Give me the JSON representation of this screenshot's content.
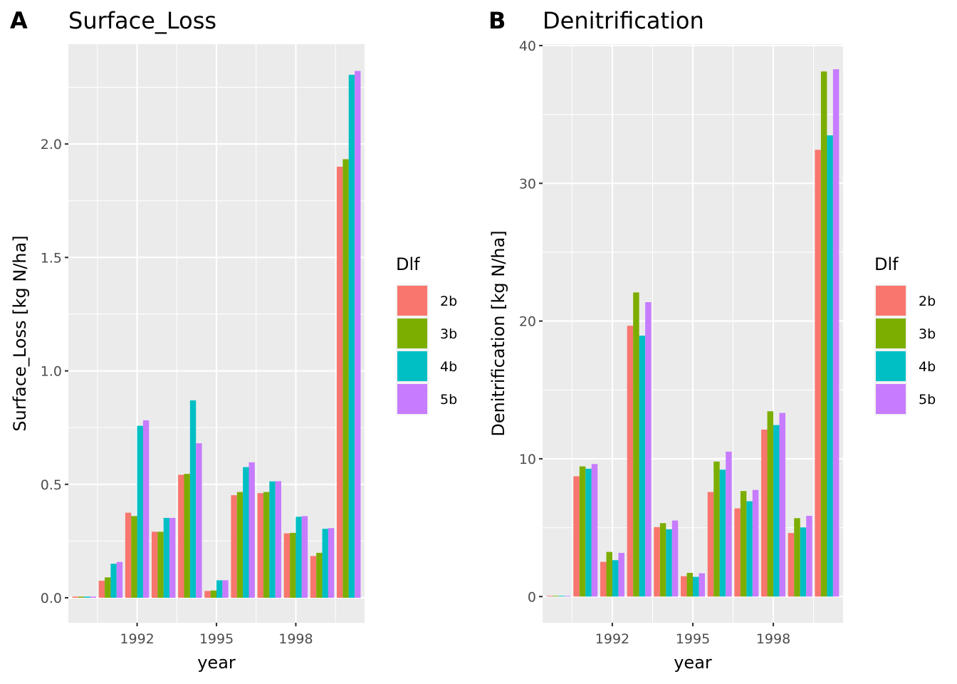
{
  "chart_data": [
    {
      "type": "bar",
      "tag": "A",
      "title": "Surface_Loss",
      "xlabel": "year",
      "ylabel": "Surface_Loss [kg N/ha]",
      "categories": [
        1990,
        1991,
        1992,
        1993,
        1994,
        1995,
        1996,
        1997,
        1998,
        1999,
        2000
      ],
      "x_ticks": [
        1992,
        1995,
        1998
      ],
      "x_tick_labels": [
        "1992",
        "1995",
        "1998"
      ],
      "y_ticks": [
        0.0,
        0.5,
        1.0,
        1.5,
        2.0
      ],
      "y_tick_labels": [
        "0.0",
        "0.5",
        "1.0",
        "1.5",
        "2.0"
      ],
      "ylim": [
        -0.11,
        2.44
      ],
      "grid": true,
      "legend": {
        "title": "Dlf",
        "position": "right"
      },
      "series": [
        {
          "name": "2b",
          "color": "#F8766D",
          "values": [
            0.005,
            0.075,
            0.375,
            0.291,
            0.542,
            0.03,
            0.452,
            0.461,
            0.284,
            0.184,
            1.9
          ]
        },
        {
          "name": "3b",
          "color": "#7CAE00",
          "values": [
            0.005,
            0.09,
            0.36,
            0.291,
            0.546,
            0.032,
            0.466,
            0.466,
            0.286,
            0.198,
            1.933
          ]
        },
        {
          "name": "4b",
          "color": "#00BFC4",
          "values": [
            0.005,
            0.15,
            0.758,
            0.352,
            0.87,
            0.077,
            0.576,
            0.513,
            0.357,
            0.304,
            2.305
          ]
        },
        {
          "name": "5b",
          "color": "#C77CFF",
          "values": [
            0.005,
            0.158,
            0.782,
            0.352,
            0.681,
            0.077,
            0.597,
            0.514,
            0.36,
            0.307,
            2.322
          ]
        }
      ]
    },
    {
      "type": "bar",
      "tag": "B",
      "title": "Denitrification",
      "xlabel": "year",
      "ylabel": "Denitrification [kg N/ha]",
      "categories": [
        1990,
        1991,
        1992,
        1993,
        1994,
        1995,
        1996,
        1997,
        1998,
        1999,
        2000
      ],
      "x_ticks": [
        1992,
        1995,
        1998
      ],
      "x_tick_labels": [
        "1992",
        "1995",
        "1998"
      ],
      "y_ticks": [
        0,
        10,
        20,
        30,
        40
      ],
      "y_tick_labels": [
        "0",
        "10",
        "20",
        "30",
        "40"
      ],
      "ylim": [
        -1.9,
        40.1
      ],
      "grid": true,
      "legend": {
        "title": "Dlf",
        "position": "right"
      },
      "series": [
        {
          "name": "2b",
          "color": "#F8766D",
          "values": [
            0.05,
            8.73,
            2.52,
            19.66,
            5.04,
            1.48,
            7.59,
            6.4,
            12.12,
            4.61,
            32.43
          ]
        },
        {
          "name": "3b",
          "color": "#7CAE00",
          "values": [
            0.05,
            9.45,
            3.24,
            22.08,
            5.33,
            1.72,
            9.8,
            7.66,
            13.45,
            5.69,
            38.12
          ]
        },
        {
          "name": "4b",
          "color": "#00BFC4",
          "values": [
            0.05,
            9.28,
            2.64,
            18.94,
            4.88,
            1.43,
            9.21,
            6.92,
            12.45,
            5.02,
            33.48
          ]
        },
        {
          "name": "5b",
          "color": "#C77CFF",
          "values": [
            0.05,
            9.62,
            3.17,
            21.37,
            5.52,
            1.69,
            10.52,
            7.74,
            13.33,
            5.86,
            38.28
          ]
        }
      ]
    }
  ]
}
